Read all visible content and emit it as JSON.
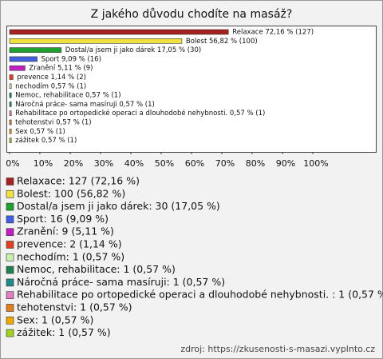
{
  "chart_data": {
    "type": "bar",
    "orientation": "horizontal",
    "title": "Z jakého důvodu chodíte na masáž?",
    "categories": [
      "Relaxace",
      "Bolest",
      "Dostal/a jsem ji jako dárek",
      "Sport",
      "Zranění",
      "prevence",
      "nechodím",
      "Nemoc, rehabilitace",
      "Náročná práce- sama masíruji",
      "Rehabilitace po ortopedické operaci a dlouhodobé nehybnosti. ",
      "tehotenstvi",
      "Sex",
      "zážitek"
    ],
    "values": [
      72.16,
      56.82,
      17.05,
      9.09,
      5.11,
      1.14,
      0.57,
      0.57,
      0.57,
      0.57,
      0.57,
      0.57,
      0.57
    ],
    "value_labels": [
      "Relaxace 72,16 % (127)",
      "Bolest 56,82 % (100)",
      "Dostal/a jsem ji jako dárek 17,05 % (30)",
      "Sport 9,09 % (16)",
      "Zranění 5,11 % (9)",
      "prevence 1,14 % (2)",
      "nechodím 0,57 % (1)",
      "Nemoc, rehabilitace 0,57 % (1)",
      "Náročná práce- sama masíruji 0,57 % (1)",
      "Rehabilitace po ortopedické operaci a dlouhodobé nehybnosti.  0,57 % (1)",
      "tehotenstvi 0,57 % (1)",
      "Sex 0,57 % (1)",
      "zážitek 0,57 % (1)"
    ],
    "colors": [
      "#a82020",
      "#f0e040",
      "#20a030",
      "#4060e0",
      "#c020c0",
      "#e04020",
      "#c8f0b0",
      "#208050",
      "#208888",
      "#e080c0",
      "#e08020",
      "#f0a800",
      "#a0d020"
    ],
    "legend": [
      "Relaxace: 127 (72,16 %)",
      "Bolest: 100 (56,82 %)",
      "Dostal/a jsem ji jako dárek: 30 (17,05 %)",
      "Sport: 16 (9,09 %)",
      "Zranění: 9 (5,11 %)",
      "prevence: 2 (1,14 %)",
      "nechodím: 1 (0,57 %)",
      "Nemoc, rehabilitace: 1 (0,57 %)",
      "Náročná práce- sama masíruji: 1 (0,57 %)",
      "Rehabilitace po ortopedické operaci a dlouhodobé nehybnosti. : 1 (0,57 %)",
      "tehotenstvi: 1 (0,57 %)",
      "Sex: 1 (0,57 %)",
      "zážitek: 1 (0,57 %)"
    ],
    "xlim": [
      0,
      100
    ],
    "xticks": [
      {
        "value": 0,
        "label": "0%"
      },
      {
        "value": 10,
        "label": "10%"
      },
      {
        "value": 20,
        "label": "20%"
      },
      {
        "value": 30,
        "label": "30%"
      },
      {
        "value": 40,
        "label": "40%"
      },
      {
        "value": 50,
        "label": "50%"
      },
      {
        "value": 60,
        "label": "60%"
      },
      {
        "value": 70,
        "label": "70%"
      },
      {
        "value": 80,
        "label": "80%"
      },
      {
        "value": 90,
        "label": "90%"
      },
      {
        "value": 100,
        "label": "100%"
      }
    ],
    "source": "zdroj: https://zkusenosti-s-masazi.vyplnto.cz"
  }
}
